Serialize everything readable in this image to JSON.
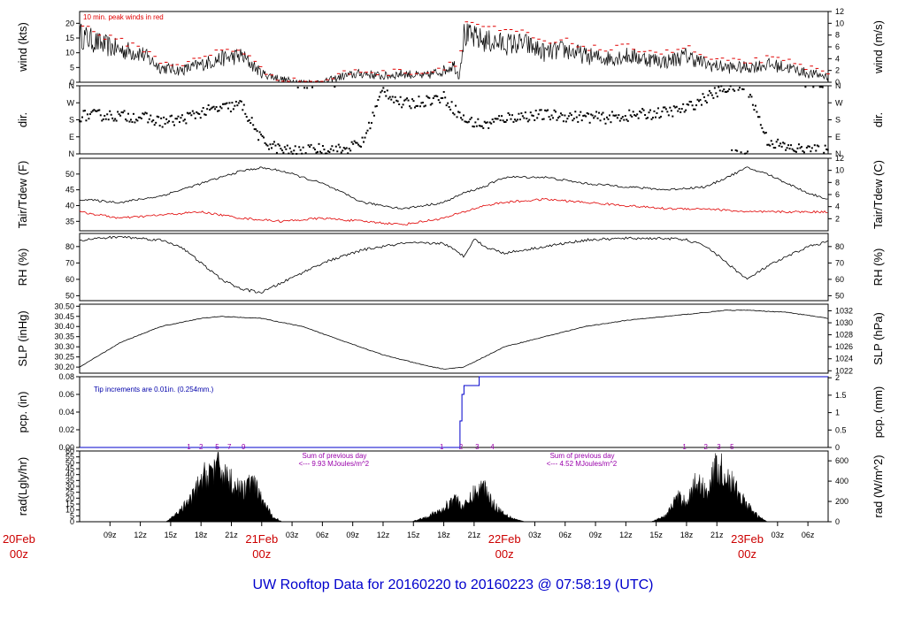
{
  "title": "UW Rooftop Data for 20160220  to  20160223 @ 07:58:19  (UTC)",
  "colors": {
    "series": "#000000",
    "dew": "#e00000",
    "peak": "#e00000",
    "precip": "#0000cc",
    "note": "#0000aa",
    "rad_note": "#9900aa",
    "day": "#cc0000"
  },
  "x_axis": {
    "hours_span": [
      6,
      80
    ],
    "ticks": [
      {
        "h": 9,
        "label": "09z"
      },
      {
        "h": 12,
        "label": "12z"
      },
      {
        "h": 15,
        "label": "15z"
      },
      {
        "h": 18,
        "label": "18z"
      },
      {
        "h": 21,
        "label": "21z"
      },
      {
        "h": 24,
        "label": "03z",
        "hidden": true
      },
      {
        "h": 27,
        "label": "03z"
      },
      {
        "h": 30,
        "label": "06z"
      },
      {
        "h": 33,
        "label": "09z"
      },
      {
        "h": 36,
        "label": "12z"
      },
      {
        "h": 39,
        "label": "15z"
      },
      {
        "h": 42,
        "label": "18z"
      },
      {
        "h": 45,
        "label": "21z"
      },
      {
        "h": 51,
        "label": "03z"
      },
      {
        "h": 54,
        "label": "06z"
      },
      {
        "h": 57,
        "label": "09z"
      },
      {
        "h": 60,
        "label": "12z"
      },
      {
        "h": 63,
        "label": "15z"
      },
      {
        "h": 66,
        "label": "18z"
      },
      {
        "h": 69,
        "label": "21z"
      },
      {
        "h": 75,
        "label": "03z"
      },
      {
        "h": 78,
        "label": "06z"
      }
    ],
    "days": [
      {
        "h": 0,
        "label": "20Feb",
        "sub": "00z"
      },
      {
        "h": 24,
        "label": "21Feb",
        "sub": "00z"
      },
      {
        "h": 48,
        "label": "22Feb",
        "sub": "00z"
      },
      {
        "h": 72,
        "label": "23Feb",
        "sub": "00z"
      }
    ]
  },
  "chart_data": [
    {
      "type": "line",
      "id": "wind",
      "ylabel_left": "wind (kts)",
      "ylabel_right": "wind (m/s)",
      "ylim": [
        0,
        24
      ],
      "yticks": [
        0,
        5,
        10,
        15,
        20
      ],
      "ylim_right": [
        0,
        12
      ],
      "yticks_right": [
        0,
        2,
        4,
        6,
        8,
        10,
        12
      ],
      "annotation": "10 min. peak winds in red",
      "x": [
        6,
        8,
        10,
        12,
        14,
        16,
        18,
        20,
        22,
        23,
        24,
        26,
        28,
        30,
        32,
        34,
        36,
        38,
        40,
        41,
        42,
        43,
        43.5,
        44,
        46,
        48,
        50,
        52,
        54,
        56,
        58,
        60,
        62,
        64,
        66,
        68,
        70,
        72,
        74,
        76,
        78,
        80
      ],
      "values": [
        16,
        13,
        11,
        10,
        5,
        4,
        6,
        8,
        9,
        6,
        3,
        1,
        0,
        0,
        2,
        3,
        2,
        3,
        2,
        3,
        4,
        6,
        2,
        16,
        14,
        13,
        13,
        10,
        11,
        9,
        8,
        9,
        8,
        7,
        9,
        6,
        5,
        5,
        6,
        5,
        3,
        2
      ],
      "peaks": [
        20,
        16,
        14,
        12,
        7,
        6,
        8,
        11,
        11,
        8,
        4,
        1,
        0,
        0,
        3,
        4,
        3,
        4,
        3,
        4,
        5,
        8,
        3,
        21,
        19,
        17,
        17,
        13,
        14,
        12,
        11,
        12,
        11,
        10,
        12,
        8,
        7,
        7,
        8,
        7,
        5,
        3
      ]
    },
    {
      "type": "scatter",
      "id": "dir",
      "ylabel_left": "dir.",
      "ylabel_right": "dir.",
      "ylim": [
        0,
        360
      ],
      "yticks": [
        0,
        90,
        180,
        270,
        360
      ],
      "ytick_labels": [
        "N",
        "E",
        "S",
        "W",
        "N"
      ],
      "x": [
        6,
        8,
        10,
        12,
        14,
        16,
        18,
        20,
        22,
        24,
        26,
        28,
        30,
        32,
        34,
        36,
        38,
        40,
        42,
        44,
        46,
        48,
        50,
        52,
        54,
        56,
        58,
        60,
        62,
        64,
        66,
        68,
        70,
        72,
        74,
        76,
        78,
        80
      ],
      "values": [
        200,
        205,
        200,
        195,
        170,
        180,
        220,
        240,
        260,
        70,
        20,
        10,
        30,
        20,
        60,
        340,
        260,
        280,
        300,
        180,
        150,
        190,
        200,
        205,
        200,
        195,
        190,
        200,
        210,
        220,
        240,
        300,
        350,
        355,
        70,
        30,
        20,
        15
      ]
    },
    {
      "type": "line",
      "id": "temp",
      "ylabel_left": "Tair/Tdew (F)",
      "ylabel_right": "Tair/Tdew (C)",
      "ylim": [
        32,
        55
      ],
      "yticks": [
        35,
        40,
        45,
        50
      ],
      "ylim_right": [
        0,
        12
      ],
      "yticks_right": [
        2,
        4,
        6,
        8,
        10,
        12
      ],
      "series": [
        {
          "name": "Tair",
          "x": [
            6,
            10,
            14,
            18,
            22,
            24,
            26,
            30,
            34,
            38,
            42,
            44,
            46,
            48,
            52,
            56,
            60,
            64,
            68,
            70,
            72,
            74,
            76,
            78,
            80
          ],
          "values": [
            42,
            41,
            43,
            47,
            51,
            52,
            51,
            47,
            41,
            39,
            41,
            44,
            46,
            49,
            49,
            47,
            46,
            45,
            46,
            49,
            52,
            50,
            47,
            44,
            42
          ]
        },
        {
          "name": "Tdew",
          "x": [
            6,
            10,
            14,
            18,
            22,
            26,
            30,
            34,
            38,
            42,
            44,
            46,
            48,
            52,
            56,
            60,
            64,
            68,
            72,
            76,
            80
          ],
          "values": [
            38,
            36,
            37,
            38,
            36,
            35,
            36,
            35,
            34,
            36,
            38,
            40,
            41,
            42,
            41,
            40,
            39,
            39,
            38,
            38,
            38
          ]
        }
      ]
    },
    {
      "type": "line",
      "id": "rh",
      "ylabel_left": "RH (%)",
      "ylabel_right": "RH (%)",
      "ylim": [
        47,
        88
      ],
      "yticks": [
        50,
        60,
        70,
        80
      ],
      "x": [
        6,
        10,
        14,
        16,
        18,
        20,
        22,
        24,
        26,
        30,
        34,
        38,
        42,
        44,
        45,
        46,
        48,
        52,
        56,
        60,
        64,
        66,
        68,
        70,
        72,
        74,
        76,
        78,
        80
      ],
      "values": [
        84,
        86,
        84,
        80,
        70,
        60,
        54,
        52,
        58,
        70,
        78,
        82,
        82,
        74,
        85,
        80,
        76,
        80,
        84,
        85,
        85,
        84,
        80,
        70,
        60,
        68,
        74,
        80,
        83
      ]
    },
    {
      "type": "line",
      "id": "slp",
      "ylabel_left": "SLP (inHg)",
      "ylabel_right": "SLP (hPa)",
      "ylim": [
        30.17,
        30.51
      ],
      "yticks": [
        30.2,
        30.25,
        30.3,
        30.35,
        30.4,
        30.45,
        30.5
      ],
      "ytick_labels": [
        "30.20",
        "30.25",
        "30.30",
        "30.35",
        "30.40",
        "30.45",
        "30.50"
      ],
      "ylim_right": [
        1021.6,
        1033.1
      ],
      "yticks_right": [
        1022,
        1024,
        1026,
        1028,
        1030,
        1032
      ],
      "x": [
        6,
        10,
        14,
        18,
        20,
        24,
        28,
        32,
        36,
        40,
        42,
        44,
        46,
        48,
        52,
        56,
        60,
        64,
        68,
        70,
        72,
        76,
        80
      ],
      "values": [
        30.2,
        30.32,
        30.4,
        30.44,
        30.45,
        30.44,
        30.4,
        30.33,
        30.26,
        30.21,
        30.19,
        30.2,
        30.25,
        30.3,
        30.35,
        30.4,
        30.43,
        30.45,
        30.47,
        30.48,
        30.48,
        30.47,
        30.44
      ]
    },
    {
      "type": "line",
      "id": "pcp",
      "ylabel_left": "pcp. (in)",
      "ylabel_right": "pcp. (mm)",
      "ylim": [
        0,
        0.08
      ],
      "yticks": [
        0,
        0.02,
        0.04,
        0.06,
        0.08
      ],
      "ytick_labels": [
        "0.00",
        "0.02",
        "0.04",
        "0.06",
        "0.08"
      ],
      "ylim_right": [
        0,
        2.03
      ],
      "yticks_right": [
        0,
        0.5,
        1,
        1.5,
        2
      ],
      "ytick_labels_right": [
        "0",
        "0.5",
        "1",
        "1.5",
        "2"
      ],
      "annotation": "Tip increments are 0.01in. (0.254mm.)",
      "x": [
        6,
        43.5,
        43.6,
        43.8,
        44,
        45,
        45.5,
        46,
        80
      ],
      "values": [
        0,
        0,
        0.03,
        0.06,
        0.07,
        0.07,
        0.08,
        0.08,
        0.08
      ]
    },
    {
      "type": "area",
      "id": "rad",
      "ylabel_left": "rad(Lgly/hr)",
      "ylabel_right": "rad (W/m^2)",
      "ylim": [
        0,
        60
      ],
      "yticks": [
        0,
        5,
        10,
        15,
        20,
        25,
        30,
        35,
        40,
        45,
        50,
        55,
        60
      ],
      "ylim_right": [
        0,
        697
      ],
      "yticks_right": [
        0,
        200,
        400,
        600
      ],
      "days": [
        {
          "x": [
            14.5,
            15,
            16,
            17,
            18,
            19,
            20,
            21,
            22,
            23,
            24,
            25,
            26
          ],
          "values": [
            0,
            3,
            12,
            22,
            40,
            52,
            52,
            40,
            30,
            40,
            22,
            6,
            0
          ]
        },
        {
          "x": [
            38.8,
            40,
            41,
            42,
            43,
            44,
            45,
            46,
            47,
            48,
            49,
            50
          ],
          "values": [
            0,
            4,
            8,
            12,
            25,
            14,
            28,
            35,
            16,
            8,
            3,
            0
          ]
        },
        {
          "x": [
            62.5,
            64,
            65,
            66,
            67,
            68,
            69,
            70,
            71,
            72,
            73,
            74
          ],
          "values": [
            0,
            6,
            24,
            20,
            40,
            30,
            55,
            45,
            30,
            16,
            6,
            0
          ]
        }
      ],
      "hour_marks": [
        {
          "h": 16.8,
          "label": "1"
        },
        {
          "h": 18,
          "label": "2"
        },
        {
          "h": 19.6,
          "label": "5"
        },
        {
          "h": 20.8,
          "label": "7"
        },
        {
          "h": 22.2,
          "label": "9"
        },
        {
          "h": 41.8,
          "label": "1"
        },
        {
          "h": 43.7,
          "label": "2"
        },
        {
          "h": 45.3,
          "label": "3"
        },
        {
          "h": 46.8,
          "label": "4"
        },
        {
          "h": 65.8,
          "label": "1"
        },
        {
          "h": 67.9,
          "label": "2"
        },
        {
          "h": 69.2,
          "label": "3"
        },
        {
          "h": 70.5,
          "label": "5"
        }
      ],
      "notes": [
        {
          "h": 28,
          "line1": "Sum of previous day",
          "line2": "<--- 9.93 MJoules/m^2"
        },
        {
          "h": 52.5,
          "line1": "Sum of previous day",
          "line2": "<--- 4.52 MJoules/m^2"
        }
      ]
    }
  ]
}
